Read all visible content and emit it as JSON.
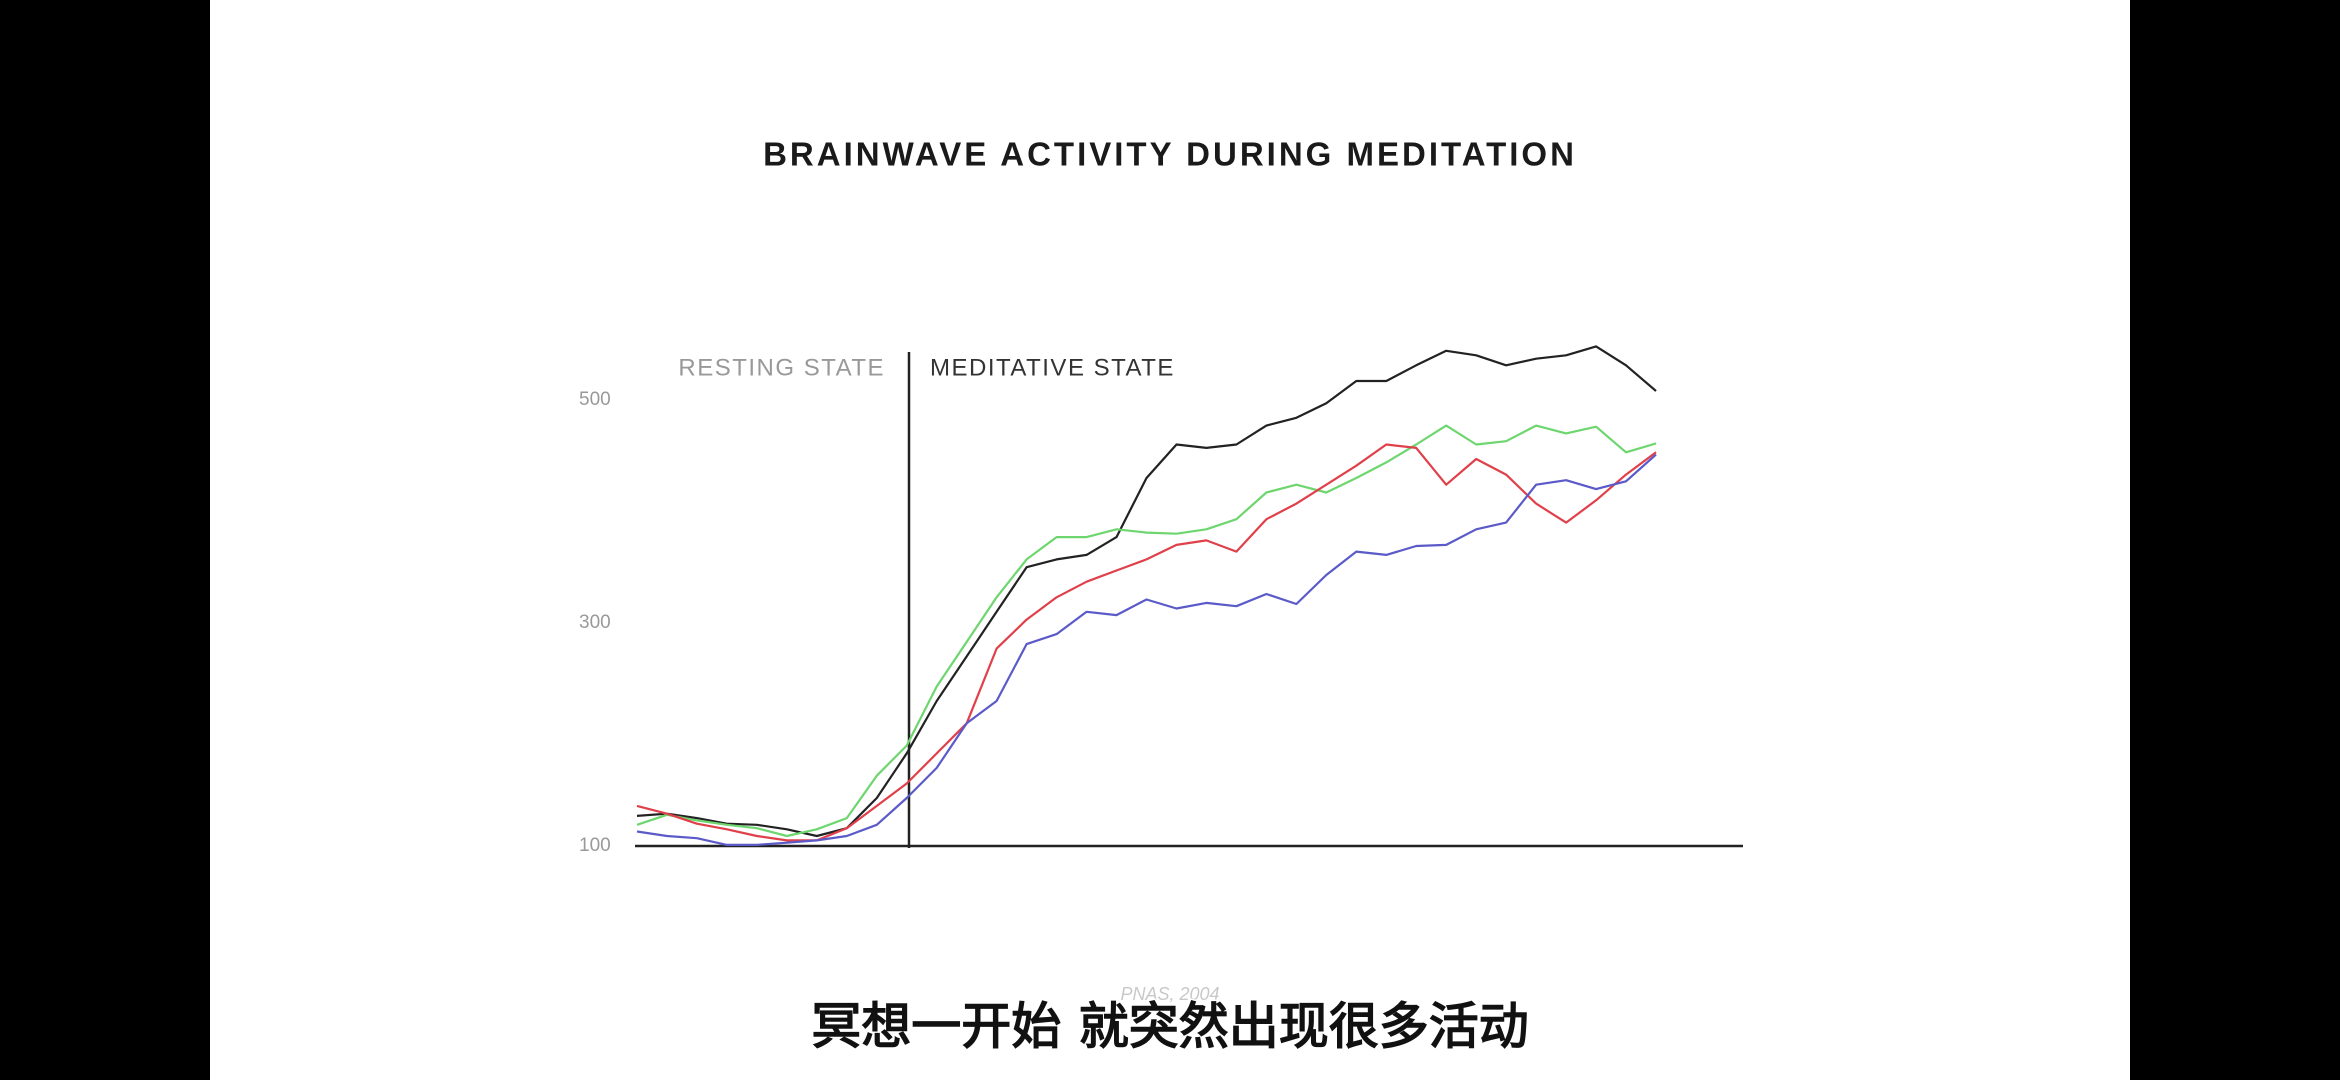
{
  "chart_data": {
    "type": "line",
    "title": "BRAINWAVE ACTIVITY DURING MEDITATION",
    "annotations": [
      "RESTING STATE",
      "MEDITATIVE STATE"
    ],
    "source": "PNAS, 2004",
    "ylim": [
      100,
      560
    ],
    "yticks": [
      100,
      300,
      500
    ],
    "series": [
      {
        "color": "#222222",
        "values": [
          127,
          129,
          125,
          120,
          119,
          115,
          109,
          116,
          143,
          183,
          230,
          270,
          310,
          350,
          357,
          361,
          377,
          430,
          460,
          457,
          460,
          477,
          484,
          497,
          517,
          517,
          531,
          544,
          540,
          531,
          537,
          540,
          548,
          531,
          508
        ]
      },
      {
        "color": "#6ed66e",
        "values": [
          119,
          128,
          123,
          119,
          116,
          109,
          115,
          125,
          163,
          190,
          243,
          283,
          323,
          357,
          377,
          377,
          384,
          381,
          380,
          384,
          393,
          417,
          424,
          417,
          430,
          444,
          460,
          477,
          460,
          463,
          477,
          470,
          476,
          453,
          461
        ]
      },
      {
        "color": "#e0404a",
        "values": [
          136,
          129,
          120,
          115,
          109,
          105,
          105,
          116,
          136,
          156,
          183,
          210,
          277,
          303,
          323,
          337,
          347,
          357,
          370,
          374,
          364,
          393,
          407,
          424,
          441,
          460,
          457,
          424,
          447,
          433,
          407,
          390,
          410,
          433,
          453
        ]
      },
      {
        "color": "#5a5ac8",
        "values": [
          113,
          109,
          107,
          101,
          101,
          103,
          105,
          109,
          119,
          143,
          170,
          210,
          230,
          281,
          290,
          310,
          307,
          321,
          313,
          318,
          315,
          326,
          317,
          343,
          364,
          361,
          369,
          370,
          384,
          390,
          424,
          428,
          420,
          427,
          451
        ]
      }
    ]
  },
  "caption": "冥想一开始 就突然出现很多活动"
}
